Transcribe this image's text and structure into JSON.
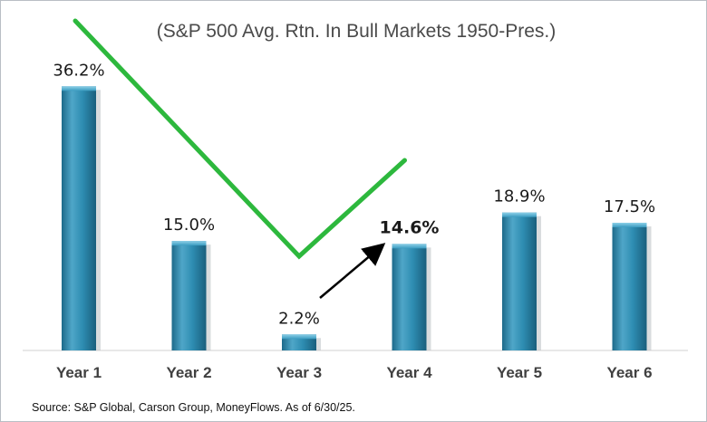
{
  "chart_data": {
    "type": "bar",
    "title": "(S&P 500 Avg. Rtn. In Bull Markets 1950-Pres.)",
    "categories": [
      "Year 1",
      "Year 2",
      "Year 3",
      "Year 4",
      "Year 5",
      "Year 6"
    ],
    "values": [
      36.2,
      15.0,
      2.2,
      14.6,
      18.9,
      17.5
    ],
    "value_labels": [
      "36.2%",
      "15.0%",
      "2.2%",
      "14.6%",
      "18.9%",
      "17.5%"
    ],
    "highlighted_label": "Year 4",
    "ylim": [
      0,
      40
    ],
    "grid": false,
    "legend": "none",
    "annotations": [
      {
        "type": "trend-line",
        "shape": "V",
        "color": "#2db83d",
        "points_x": [
          "Year 1",
          "Year 3",
          "Year 4"
        ]
      },
      {
        "type": "arrow",
        "from": "Year 3",
        "to": "Year 4",
        "color": "#000000"
      }
    ],
    "source": "Source: S&P Global, Carson Group, MoneyFlows. As of 6/30/25."
  },
  "colors": {
    "bar": "#2e8db2",
    "bar_dark": "#1d6a8a",
    "bar_light": "#5cb1d0",
    "trend_line": "#2db83d",
    "arrow": "#000000"
  }
}
